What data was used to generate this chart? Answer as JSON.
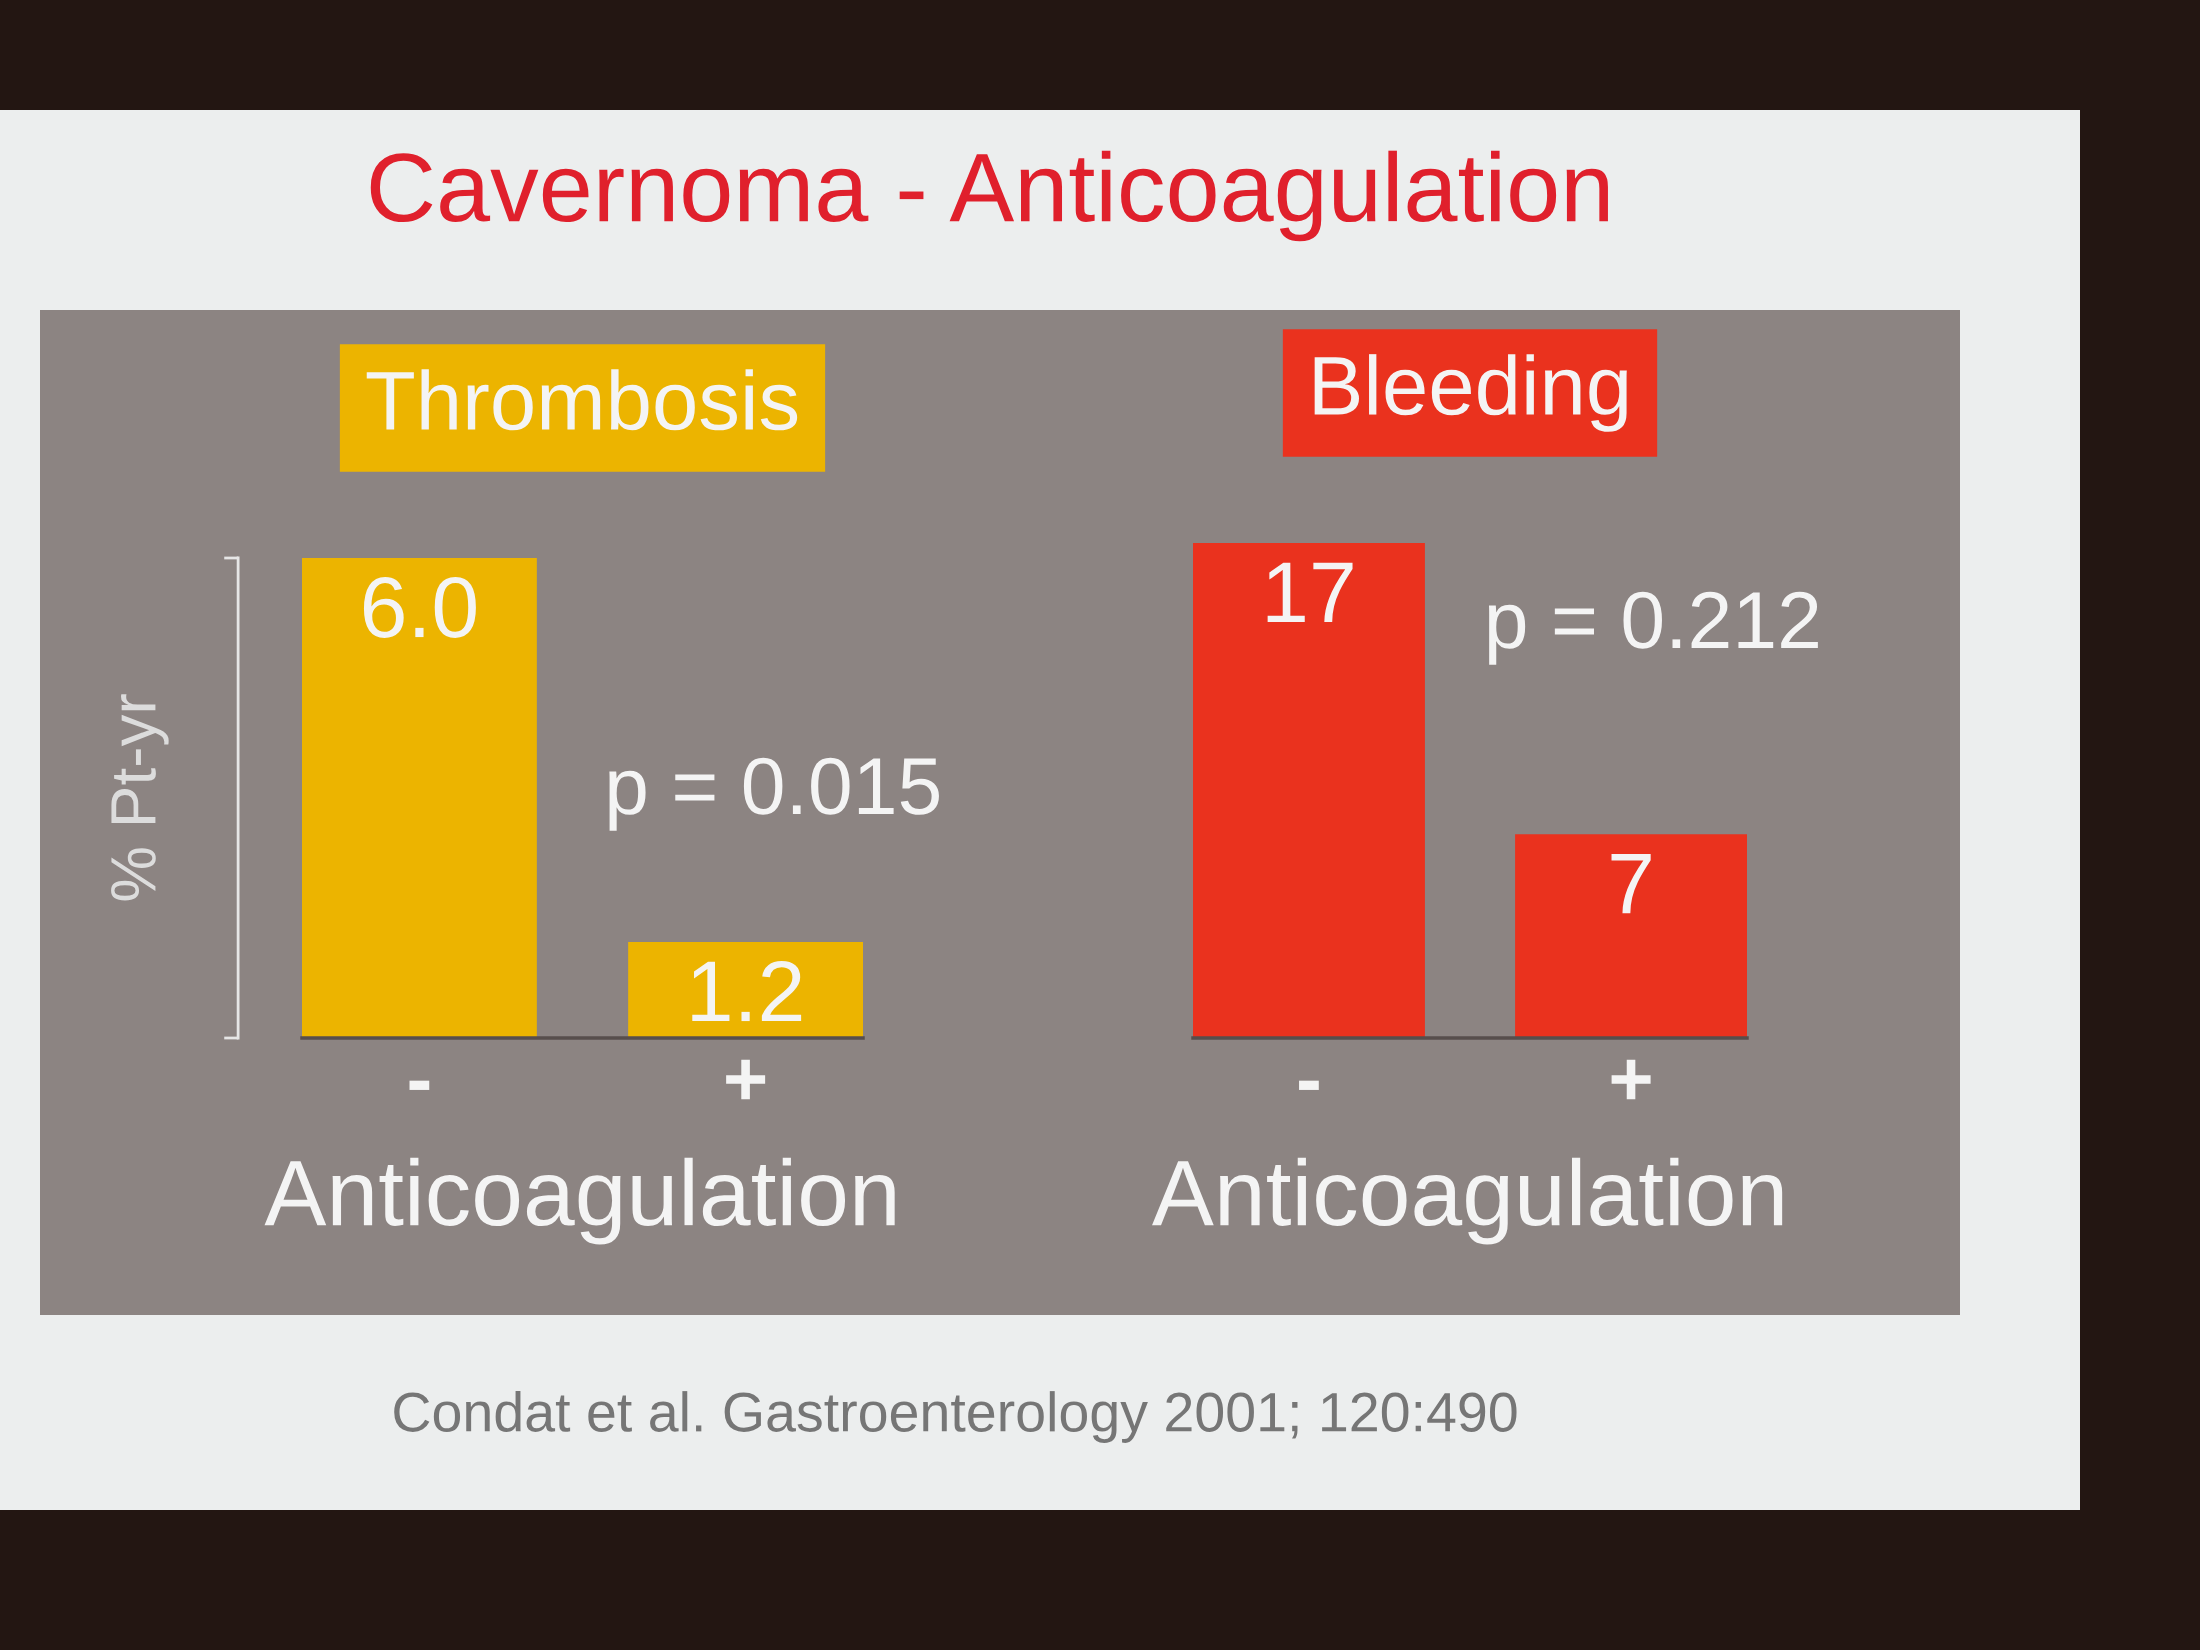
{
  "chart_data": [
    {
      "type": "other",
      "title": "Cavernoma - Anticoagulation",
      "annotations": [
        "Condat et al. Gastroenterology 2001; 120:490"
      ]
    },
    {
      "type": "bar",
      "title": "Thrombosis",
      "xlabel": "Anticoagulation",
      "ylabel": "% Pt-yr",
      "categories": [
        "-",
        "+"
      ],
      "values": [
        6.0,
        1.2
      ],
      "value_labels": [
        "6.0",
        "1.2"
      ],
      "color": "#ecb400",
      "ylim": [
        0,
        6
      ],
      "tick_labels": "x",
      "annotations": [
        "p = 0.015"
      ]
    },
    {
      "type": "bar",
      "title": "Bleeding",
      "xlabel": "Anticoagulation",
      "categories": [
        "-",
        "+"
      ],
      "values": [
        17,
        7
      ],
      "data_labels": true,
      "color": "#ea321e",
      "ylim": [
        0,
        17
      ],
      "tick_labels": "x",
      "annotations": [
        "p = 0.212"
      ]
    }
  ]
}
